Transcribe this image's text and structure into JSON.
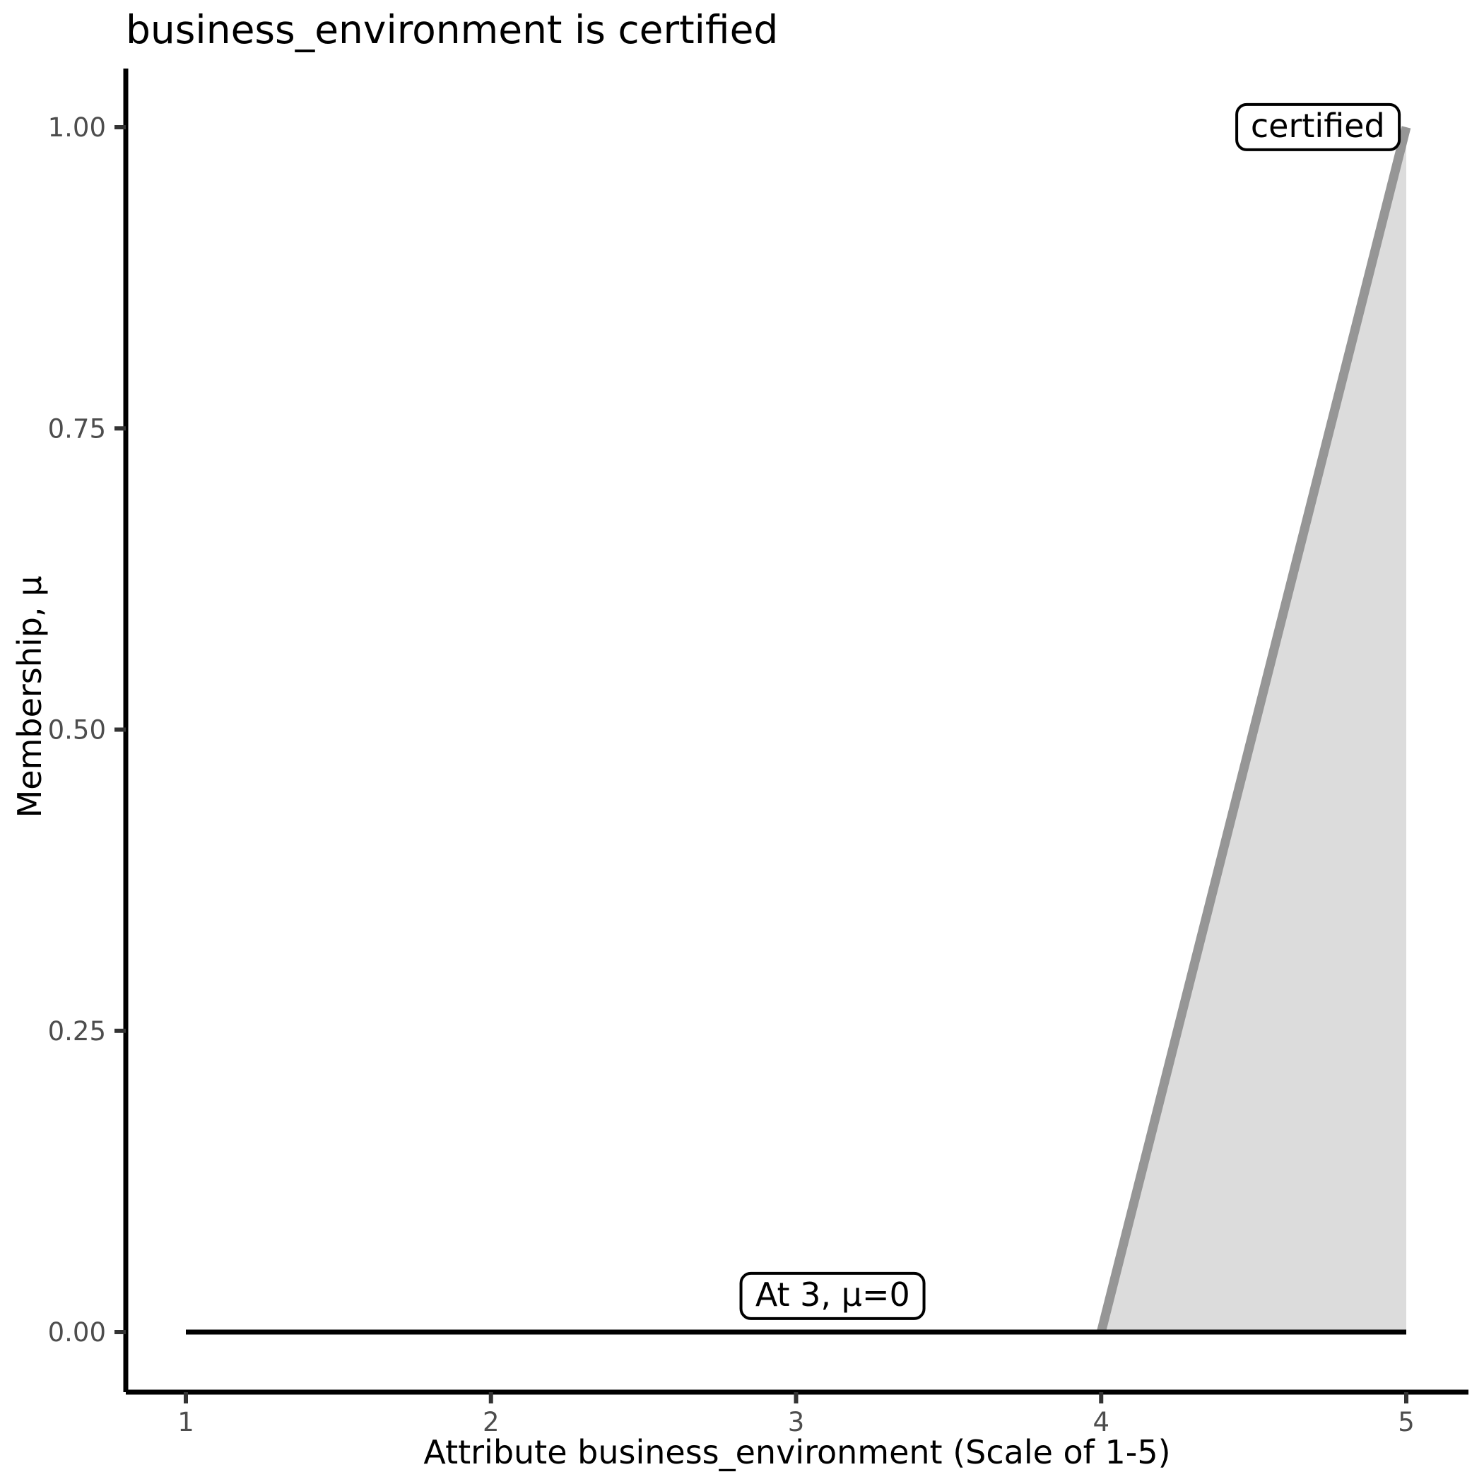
{
  "chart_data": {
    "type": "area",
    "title": "business_environment is certified",
    "xlabel": "Attribute business_environment (Scale of 1-5)",
    "ylabel": "Membership, μ",
    "xlim": [
      1,
      5
    ],
    "ylim": [
      0,
      1
    ],
    "grid": false,
    "legend": "none",
    "x_ticks": {
      "values": [
        1,
        2,
        3,
        4,
        5
      ],
      "labels": [
        "1",
        "2",
        "3",
        "4",
        "5"
      ]
    },
    "y_ticks": {
      "values": [
        0,
        0.25,
        0.5,
        0.75,
        1
      ],
      "labels": [
        "0.00",
        "0.25",
        "0.50",
        "0.75",
        "1.00"
      ]
    },
    "series": [
      {
        "name": "certified-membership-function",
        "type": "line",
        "color": "#969696",
        "width": 13,
        "points": [
          [
            4,
            0
          ],
          [
            5,
            1
          ]
        ],
        "area": {
          "fill": "#dcdcdc",
          "baseline": 0
        }
      },
      {
        "name": "zero-membership-baseline",
        "type": "line",
        "color": "#000000",
        "width": 7,
        "points": [
          [
            1,
            0
          ],
          [
            5,
            0
          ]
        ]
      }
    ],
    "annotations": [
      {
        "text": "certified",
        "x": 4.71,
        "y": 1.0
      },
      {
        "text": "At 3, μ=0",
        "x": 3.12,
        "y": 0.03
      }
    ],
    "colors": {
      "axis_line": "#000000",
      "tick_mark": "#333333",
      "tick_label": "#4d4d4d",
      "title_text": "#000000",
      "annotation_bg": "#ffffff",
      "annotation_border": "#000000",
      "area_fill": "#dcdcdc",
      "membership_line": "#969696",
      "baseline": "#000000"
    }
  }
}
